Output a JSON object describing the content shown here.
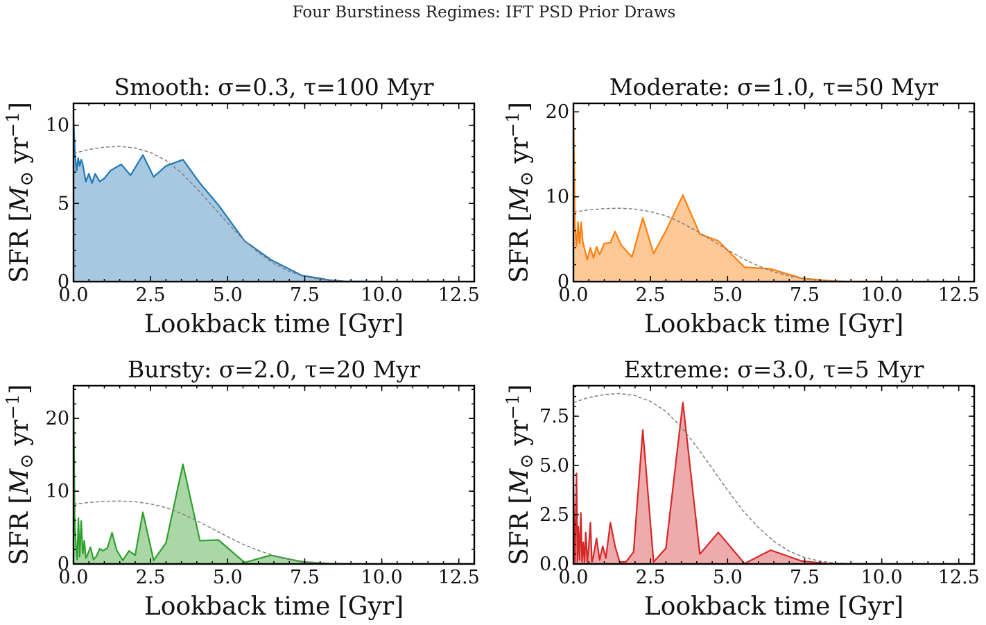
{
  "figure": {
    "suptitle": "Four Burstiness Regimes: IFT PSD Prior Draws",
    "xlabel": "Lookback time [Gyr]",
    "ylabel_prefix": "SFR [",
    "ylabel_math": "M",
    "ylabel_sub": "⊙",
    "ylabel_unit": " yr",
    "ylabel_exp": "−1",
    "ylabel_close": "]"
  },
  "chart_data": [
    {
      "type": "area",
      "title": "Smooth: σ=0.3, τ=100 Myr",
      "xlabel": "Lookback time [Gyr]",
      "ylabel": "SFR [M⊙ yr−1]",
      "xlim": [
        0,
        13
      ],
      "ylim": [
        0,
        11.4
      ],
      "xticks": [
        0,
        2.5,
        5,
        7.5,
        10,
        12.5
      ],
      "xticklabels": [
        "0.0",
        "2.5",
        "5.0",
        "7.5",
        "10.0",
        "12.5"
      ],
      "yticks": [
        0,
        5,
        10
      ],
      "yticklabels": [
        "0",
        "5",
        "10"
      ],
      "color": "#1f77b4",
      "fill_color": "#a6c8e1",
      "grid": false,
      "series": [
        {
          "x": [
            0,
            0.05,
            0.1,
            0.15,
            0.2,
            0.25,
            0.3,
            0.4,
            0.5,
            0.6,
            0.7,
            0.85,
            1.0,
            1.2,
            1.55,
            1.85,
            2.25,
            2.6,
            3.0,
            3.55,
            4.1,
            4.7,
            5.55,
            6.4,
            7.4,
            8.3,
            8.8,
            10,
            13
          ],
          "y": [
            10.4,
            8.1,
            7.1,
            7.9,
            7.4,
            7.8,
            7.5,
            6.4,
            6.9,
            6.3,
            6.9,
            6.4,
            6.6,
            7.1,
            7.5,
            6.8,
            8.1,
            6.7,
            7.4,
            7.8,
            6.3,
            4.9,
            2.6,
            1.4,
            0.4,
            0.1,
            0.02,
            0,
            0
          ]
        }
      ],
      "reference": {
        "x": [
          0,
          0.5,
          1.0,
          1.5,
          2.0,
          2.5,
          3.0,
          3.5,
          4.0,
          4.5,
          5.0,
          5.5,
          6.0,
          6.5,
          7.0,
          7.5,
          8.0,
          8.5,
          9.0,
          9.5,
          10.0
        ],
        "y": [
          8.2,
          8.45,
          8.6,
          8.65,
          8.55,
          8.25,
          7.75,
          6.95,
          5.95,
          4.85,
          3.75,
          2.7,
          1.85,
          1.15,
          0.65,
          0.32,
          0.14,
          0.05,
          0.02,
          0.005,
          0
        ]
      }
    },
    {
      "type": "area",
      "title": "Moderate: σ=1.0, τ=50 Myr",
      "xlabel": "Lookback time [Gyr]",
      "ylabel": "SFR [M⊙ yr−1]",
      "xlim": [
        0,
        13
      ],
      "ylim": [
        0,
        21
      ],
      "xticks": [
        0,
        2.5,
        5,
        7.5,
        10,
        12.5
      ],
      "xticklabels": [
        "0.0",
        "2.5",
        "5.0",
        "7.5",
        "10.0",
        "12.5"
      ],
      "yticks": [
        0,
        10,
        20
      ],
      "yticklabels": [
        "0",
        "10",
        "20"
      ],
      "color": "#ff7f0e",
      "fill_color": "#ffc897",
      "grid": false,
      "series": [
        {
          "x": [
            0,
            0.05,
            0.1,
            0.15,
            0.2,
            0.25,
            0.3,
            0.35,
            0.45,
            0.55,
            0.65,
            0.75,
            0.85,
            1.0,
            1.2,
            1.35,
            1.55,
            1.9,
            2.25,
            2.6,
            3.0,
            3.55,
            4.1,
            4.7,
            5.55,
            6.4,
            7.4,
            8.3,
            8.8,
            10,
            13
          ],
          "y": [
            20.5,
            6.5,
            4.2,
            7.0,
            4.5,
            7.0,
            4.8,
            4.0,
            2.6,
            4.0,
            2.8,
            4.1,
            3.2,
            4.5,
            4.6,
            5.9,
            4.3,
            2.9,
            7.5,
            3.3,
            6.0,
            10.2,
            5.6,
            4.8,
            1.7,
            1.5,
            0.4,
            0.1,
            0.02,
            0,
            0
          ]
        }
      ],
      "reference": {
        "x": [
          0,
          0.5,
          1.0,
          1.5,
          2.0,
          2.5,
          3.0,
          3.5,
          4.0,
          4.5,
          5.0,
          5.5,
          6.0,
          6.5,
          7.0,
          7.5,
          8.0,
          8.5,
          9.0,
          9.5,
          10.0
        ],
        "y": [
          8.2,
          8.45,
          8.6,
          8.65,
          8.55,
          8.25,
          7.75,
          6.95,
          5.95,
          4.85,
          3.75,
          2.7,
          1.85,
          1.15,
          0.65,
          0.32,
          0.14,
          0.05,
          0.02,
          0.005,
          0
        ]
      }
    },
    {
      "type": "area",
      "title": "Bursty: σ=2.0, τ=20 Myr",
      "xlabel": "Lookback time [Gyr]",
      "ylabel": "SFR [M⊙ yr−1]",
      "xlim": [
        0,
        13
      ],
      "ylim": [
        0,
        24.5
      ],
      "xticks": [
        0,
        2.5,
        5,
        7.5,
        10,
        12.5
      ],
      "xticklabels": [
        "0.0",
        "2.5",
        "5.0",
        "7.5",
        "10.0",
        "12.5"
      ],
      "yticks": [
        0,
        10,
        20
      ],
      "yticklabels": [
        "0",
        "10",
        "20"
      ],
      "color": "#2ca02c",
      "fill_color": "#aad7a5",
      "grid": false,
      "series": [
        {
          "x": [
            0,
            0.04,
            0.08,
            0.12,
            0.16,
            0.2,
            0.25,
            0.3,
            0.35,
            0.4,
            0.45,
            0.55,
            0.65,
            0.75,
            0.85,
            0.95,
            1.1,
            1.25,
            1.4,
            1.6,
            1.8,
            2.0,
            2.25,
            2.6,
            3.0,
            3.55,
            4.1,
            4.7,
            5.55,
            6.4,
            7.4,
            8.3,
            8.8,
            10,
            13
          ],
          "y": [
            24,
            6.0,
            2.5,
            0.6,
            6.3,
            1.0,
            5.9,
            1.4,
            3.2,
            0.8,
            1.2,
            2.3,
            0.6,
            1.1,
            2.1,
            1.8,
            2.2,
            4.3,
            1.9,
            0.5,
            1.8,
            1.2,
            7.1,
            0.5,
            2.9,
            13.7,
            3.2,
            3.3,
            0.2,
            1.2,
            0.3,
            0.05,
            0.01,
            0,
            0
          ]
        }
      ],
      "reference": {
        "x": [
          0,
          0.5,
          1.0,
          1.5,
          2.0,
          2.5,
          3.0,
          3.5,
          4.0,
          4.5,
          5.0,
          5.5,
          6.0,
          6.5,
          7.0,
          7.5,
          8.0,
          8.5,
          9.0,
          9.5,
          10.0
        ],
        "y": [
          8.2,
          8.45,
          8.6,
          8.65,
          8.55,
          8.25,
          7.75,
          6.95,
          5.95,
          4.85,
          3.75,
          2.7,
          1.85,
          1.15,
          0.65,
          0.32,
          0.14,
          0.05,
          0.02,
          0.005,
          0
        ]
      }
    },
    {
      "type": "area",
      "title": "Extreme: σ=3.0, τ=5 Myr",
      "xlabel": "Lookback time [Gyr]",
      "ylabel": "SFR [M⊙ yr−1]",
      "xlim": [
        0,
        13
      ],
      "ylim": [
        0,
        9.05
      ],
      "xticks": [
        0,
        2.5,
        5,
        7.5,
        10,
        12.5
      ],
      "xticklabels": [
        "0.0",
        "2.5",
        "5.0",
        "7.5",
        "10.0",
        "12.5"
      ],
      "yticks": [
        0,
        2.5,
        5,
        7.5
      ],
      "yticklabels": [
        "0.0",
        "2.5",
        "5.0",
        "7.5"
      ],
      "color": "#d62728",
      "fill_color": "#eeabab",
      "grid": false,
      "series": [
        {
          "x": [
            0,
            0.05,
            0.1,
            0.13,
            0.16,
            0.2,
            0.24,
            0.28,
            0.32,
            0.36,
            0.4,
            0.45,
            0.5,
            0.55,
            0.6,
            0.65,
            0.75,
            0.85,
            0.95,
            1.05,
            1.2,
            1.35,
            1.5,
            1.7,
            1.95,
            2.25,
            2.6,
            3.0,
            3.55,
            4.1,
            4.7,
            5.55,
            6.4,
            7.4,
            8.3,
            8.8,
            10,
            13
          ],
          "y": [
            4.0,
            0.1,
            4.6,
            0.1,
            1.9,
            0.2,
            2.6,
            0.1,
            1.1,
            0.1,
            1.6,
            0.1,
            0.9,
            2.1,
            0.1,
            0.4,
            1.3,
            0.2,
            0.9,
            0.3,
            2.1,
            0.9,
            0.1,
            0.1,
            0.6,
            6.8,
            0.1,
            0.8,
            8.2,
            0.5,
            1.6,
            0.02,
            0.7,
            0.15,
            0.01,
            0.01,
            0,
            0
          ]
        }
      ],
      "reference": {
        "x": [
          0,
          0.5,
          1.0,
          1.5,
          2.0,
          2.5,
          3.0,
          3.5,
          4.0,
          4.5,
          5.0,
          5.5,
          6.0,
          6.5,
          7.0,
          7.5,
          8.0,
          8.5,
          9.0,
          9.5,
          10.0
        ],
        "y": [
          8.2,
          8.45,
          8.6,
          8.65,
          8.55,
          8.25,
          7.75,
          6.95,
          5.95,
          4.85,
          3.75,
          2.7,
          1.85,
          1.15,
          0.65,
          0.32,
          0.14,
          0.05,
          0.02,
          0.005,
          0
        ]
      }
    }
  ]
}
